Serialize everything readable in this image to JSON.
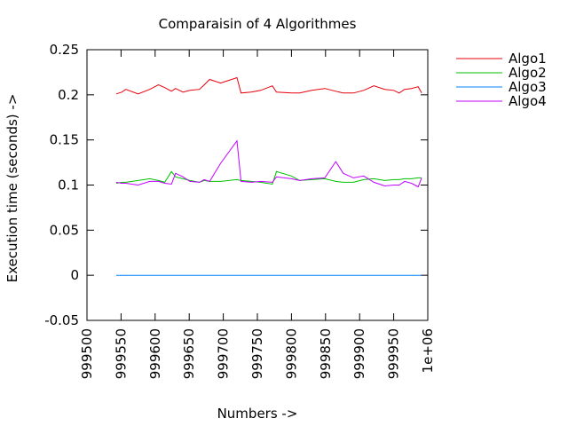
{
  "chart_data": {
    "type": "line",
    "title": "Comparaisin of 4 Algorithmes",
    "xlabel": "Numbers ->",
    "ylabel": "Execution time (seconds) ->",
    "xlim": [
      999500,
      1000000
    ],
    "ylim": [
      -0.05,
      0.25
    ],
    "xticks": [
      999500,
      999550,
      999600,
      999650,
      999700,
      999750,
      999800,
      999850,
      999900,
      999950,
      1000000
    ],
    "xtick_labels": [
      "999500",
      "999550",
      "999600",
      "999650",
      "999700",
      "999750",
      "999800",
      "999850",
      "999900",
      "999950",
      "1e+06"
    ],
    "yticks": [
      -0.05,
      0,
      0.05,
      0.1,
      0.15,
      0.2,
      0.25
    ],
    "ytick_labels": [
      "-0.05",
      "0",
      "0.05",
      "0.1",
      "0.15",
      "0.2",
      "0.25"
    ],
    "grid": false,
    "legend_position": "top-right outside",
    "x": [
      999543,
      999551,
      999557,
      999575,
      999592,
      999605,
      999614,
      999624,
      999630,
      999641,
      999651,
      999665,
      999672,
      999680,
      999696,
      999720,
      999726,
      999741,
      999755,
      999772,
      999778,
      999800,
      999812,
      999830,
      999849,
      999865,
      999876,
      999891,
      999906,
      999921,
      999937,
      999950,
      999958,
      999966,
      999976,
      999986,
      999991
    ],
    "series": [
      {
        "name": "Algo1",
        "color": "#e8000b",
        "values": [
          0.201,
          0.203,
          0.206,
          0.201,
          0.206,
          0.211,
          0.208,
          0.204,
          0.207,
          0.203,
          0.205,
          0.206,
          0.211,
          0.217,
          0.213,
          0.219,
          0.202,
          0.203,
          0.205,
          0.21,
          0.203,
          0.202,
          0.202,
          0.205,
          0.207,
          0.204,
          0.202,
          0.202,
          0.205,
          0.21,
          0.206,
          0.205,
          0.202,
          0.206,
          0.207,
          0.209,
          0.202
        ]
      },
      {
        "name": "Algo2",
        "color": "#00c000",
        "values": [
          0.102,
          0.103,
          0.103,
          0.105,
          0.107,
          0.105,
          0.103,
          0.115,
          0.109,
          0.107,
          0.105,
          0.103,
          0.105,
          0.104,
          0.104,
          0.106,
          0.105,
          0.104,
          0.103,
          0.101,
          0.115,
          0.11,
          0.105,
          0.106,
          0.107,
          0.104,
          0.103,
          0.103,
          0.106,
          0.107,
          0.105,
          0.106,
          0.106,
          0.107,
          0.107,
          0.108,
          0.108
        ]
      },
      {
        "name": "Algo3",
        "color": "#0080ff",
        "values": [
          0,
          0,
          0,
          0,
          0,
          0,
          0,
          0,
          0,
          0,
          0,
          0,
          0,
          0,
          0,
          0,
          0,
          0,
          0,
          0,
          0,
          0,
          0,
          0,
          0,
          0,
          0,
          0,
          0,
          0,
          0,
          0,
          0,
          0,
          0,
          0,
          0
        ]
      },
      {
        "name": "Algo4",
        "color": "#c000ff",
        "values": [
          0.103,
          0.102,
          0.102,
          0.1,
          0.104,
          0.104,
          0.102,
          0.101,
          0.113,
          0.109,
          0.104,
          0.103,
          0.106,
          0.104,
          0.124,
          0.149,
          0.104,
          0.103,
          0.104,
          0.103,
          0.109,
          0.107,
          0.105,
          0.107,
          0.108,
          0.126,
          0.113,
          0.108,
          0.11,
          0.103,
          0.099,
          0.1,
          0.1,
          0.104,
          0.102,
          0.098,
          0.108
        ]
      }
    ]
  }
}
